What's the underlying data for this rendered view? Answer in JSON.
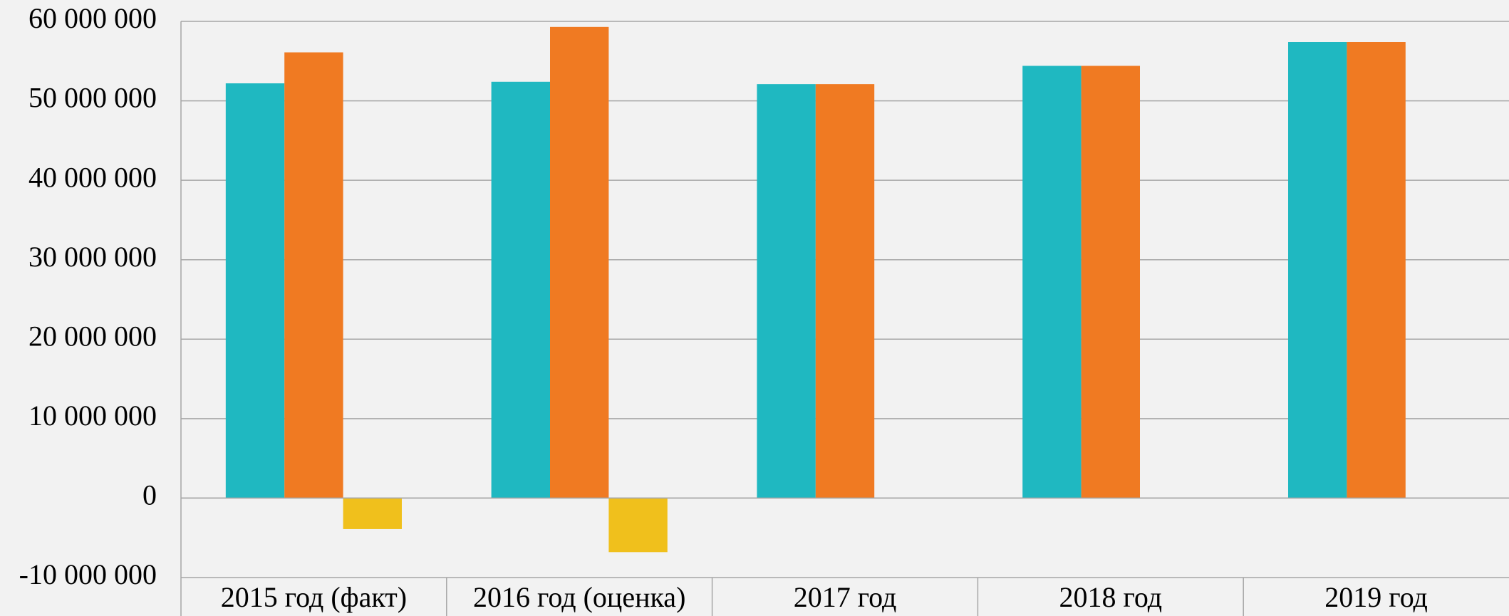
{
  "chart_data": {
    "type": "bar",
    "categories": [
      "2015 год (факт)",
      "2016 год (оценка)",
      "2017 год",
      "2018 год",
      "2019 год"
    ],
    "series": [
      {
        "color": "#1fb8c1",
        "values": [
          52200000,
          52400000,
          52100000,
          54400000,
          57400000
        ]
      },
      {
        "color": "#f07a22",
        "values": [
          56100000,
          59300000,
          52100000,
          54400000,
          57400000
        ]
      },
      {
        "color": "#f0c01c",
        "values": [
          -3900000,
          -6800000,
          null,
          null,
          null
        ]
      }
    ],
    "ylim": [
      -10000000,
      60000000
    ],
    "yticks": [
      {
        "value": -10000000,
        "label": "-10 000 000"
      },
      0,
      {
        "value": 10000000,
        "label": "10 000 000"
      },
      {
        "value": 20000000,
        "label": "20 000 000"
      },
      {
        "value": 30000000,
        "label": "30 000 000"
      },
      {
        "value": 40000000,
        "label": "40 000 000"
      },
      {
        "value": 50000000,
        "label": "50 000 000"
      },
      {
        "value": 60000000,
        "label": "60 000 000"
      }
    ],
    "grid": true
  }
}
